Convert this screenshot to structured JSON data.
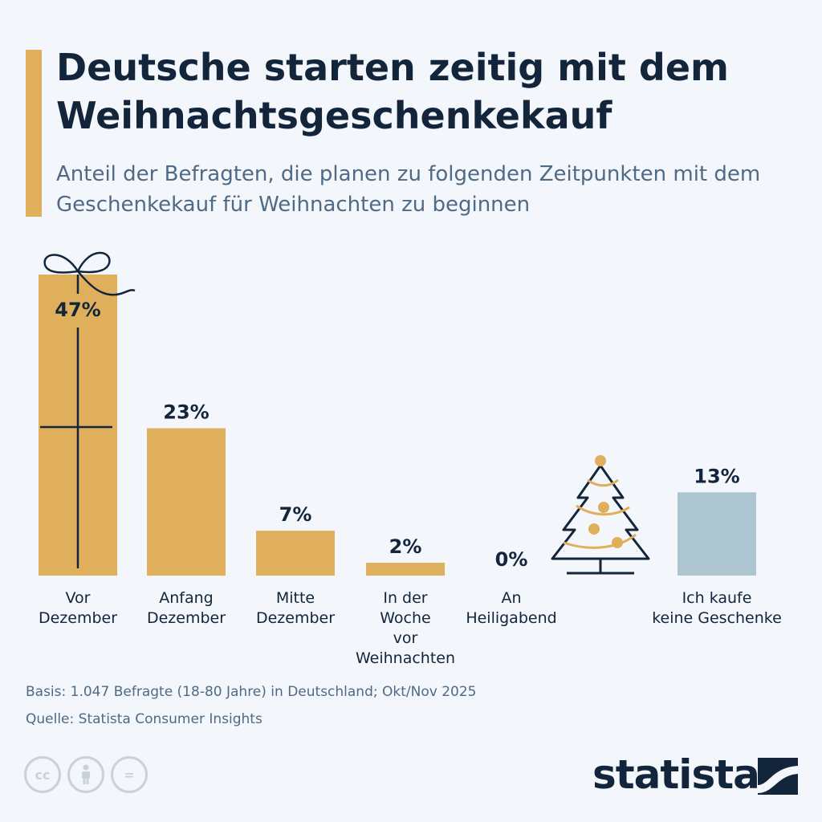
{
  "title": "Deutsche starten zeitig mit dem Weihnachtsgeschenkekauf",
  "subtitle": "Anteil der Befragten, die planen zu folgenden Zeitpunkten mit dem Geschenkekauf für Weihnachten zu beginnen",
  "chart_data": {
    "type": "bar",
    "title": "Deutsche starten zeitig mit dem Weihnachtsgeschenkekauf",
    "subtitle": "Anteil der Befragten, die planen zu folgenden Zeitpunkten mit dem Geschenkekauf für Weihnachten zu beginnen",
    "unit": "%",
    "categories": [
      [
        "Vor",
        "Dezember"
      ],
      [
        "Anfang",
        "Dezember"
      ],
      [
        "Mitte",
        "Dezember"
      ],
      [
        "In der",
        "Woche",
        "vor",
        "Weihnachten"
      ],
      [
        "An",
        "Heiligabend"
      ],
      [
        "Ich kaufe",
        "keine Geschenke"
      ]
    ],
    "values": [
      47,
      23,
      7,
      2,
      0,
      13
    ],
    "value_labels": [
      "47%",
      "23%",
      "7%",
      "2%",
      "0%",
      "13%"
    ],
    "colors": [
      "#dfaf5c",
      "#dfaf5c",
      "#dfaf5c",
      "#dfaf5c",
      "#dfaf5c",
      "#adc4d1"
    ],
    "ylim": [
      0,
      47
    ],
    "grid": false
  },
  "footer": {
    "basis": "Basis: 1.047 Befragte (18-80 Jahre) in Deutschland; Okt/Nov 2025",
    "source": "Quelle: Statista Consumer Insights"
  },
  "license_icons": [
    "cc-icon",
    "person-icon",
    "equals-icon"
  ],
  "license_symbols": {
    "cc": "cc",
    "eq": "="
  },
  "brand": "statista",
  "colors": {
    "accent": "#dfaf5c",
    "navy": "#13253b",
    "muted": "#4f6a86",
    "no_gift": "#adc4d1"
  }
}
